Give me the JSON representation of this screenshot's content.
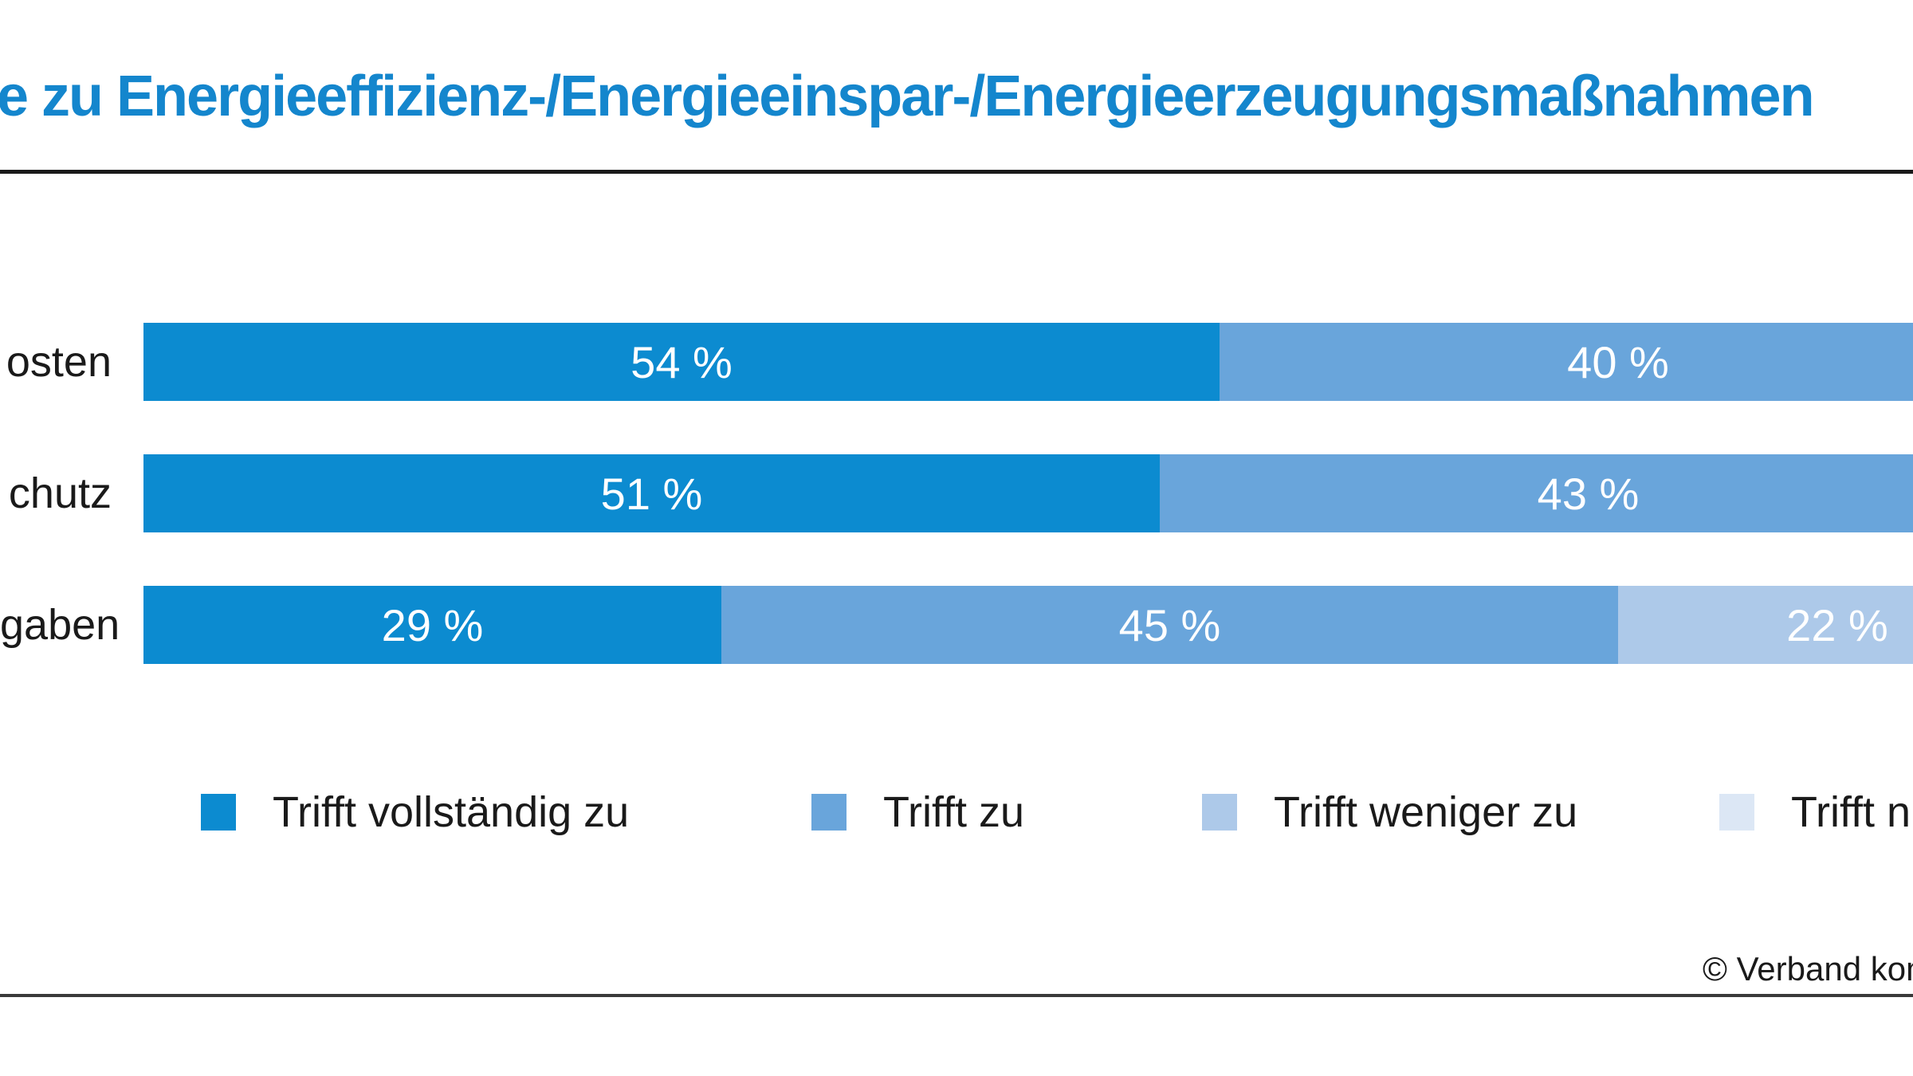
{
  "page": {
    "background": "#ffffff"
  },
  "header": {
    "title": "e zu Energieeffizienz-/Energieeinspar-/Energieerzeugungsmaßnahmen",
    "title_color": "#1486cd"
  },
  "chart_data": {
    "type": "bar",
    "orientation": "horizontal",
    "stacked": true,
    "unit": "%",
    "value_suffix": " %",
    "xlim": [
      0,
      100
    ],
    "grid": false,
    "legend_position": "bottom",
    "categories": [
      "osten",
      "chutz",
      "gaben"
    ],
    "series": [
      {
        "name": "Trifft vollständig zu",
        "color": "#0c8bd0"
      },
      {
        "name": "Trifft zu",
        "color": "#69a5db"
      },
      {
        "name": "Trifft weniger zu",
        "color": "#adc9e9"
      },
      {
        "name": "Trifft n",
        "color": "#dce7f5"
      }
    ],
    "rows": [
      {
        "category": "osten",
        "segments": [
          {
            "series": 0,
            "value": 54
          },
          {
            "series": 1,
            "value": 40
          }
        ]
      },
      {
        "category": "chutz",
        "segments": [
          {
            "series": 0,
            "value": 51
          },
          {
            "series": 1,
            "value": 43
          }
        ]
      },
      {
        "category": "gaben",
        "segments": [
          {
            "series": 0,
            "value": 29
          },
          {
            "series": 1,
            "value": 45
          },
          {
            "series": 2,
            "value": 22
          }
        ]
      }
    ]
  },
  "footer": {
    "copyright": "© Verband kom"
  },
  "colors": {
    "rule_top": "#1a1a1a",
    "rule_bottom": "#3a3a3a",
    "bar_value_text": "#ffffff",
    "body_text": "#1a1a1a"
  }
}
